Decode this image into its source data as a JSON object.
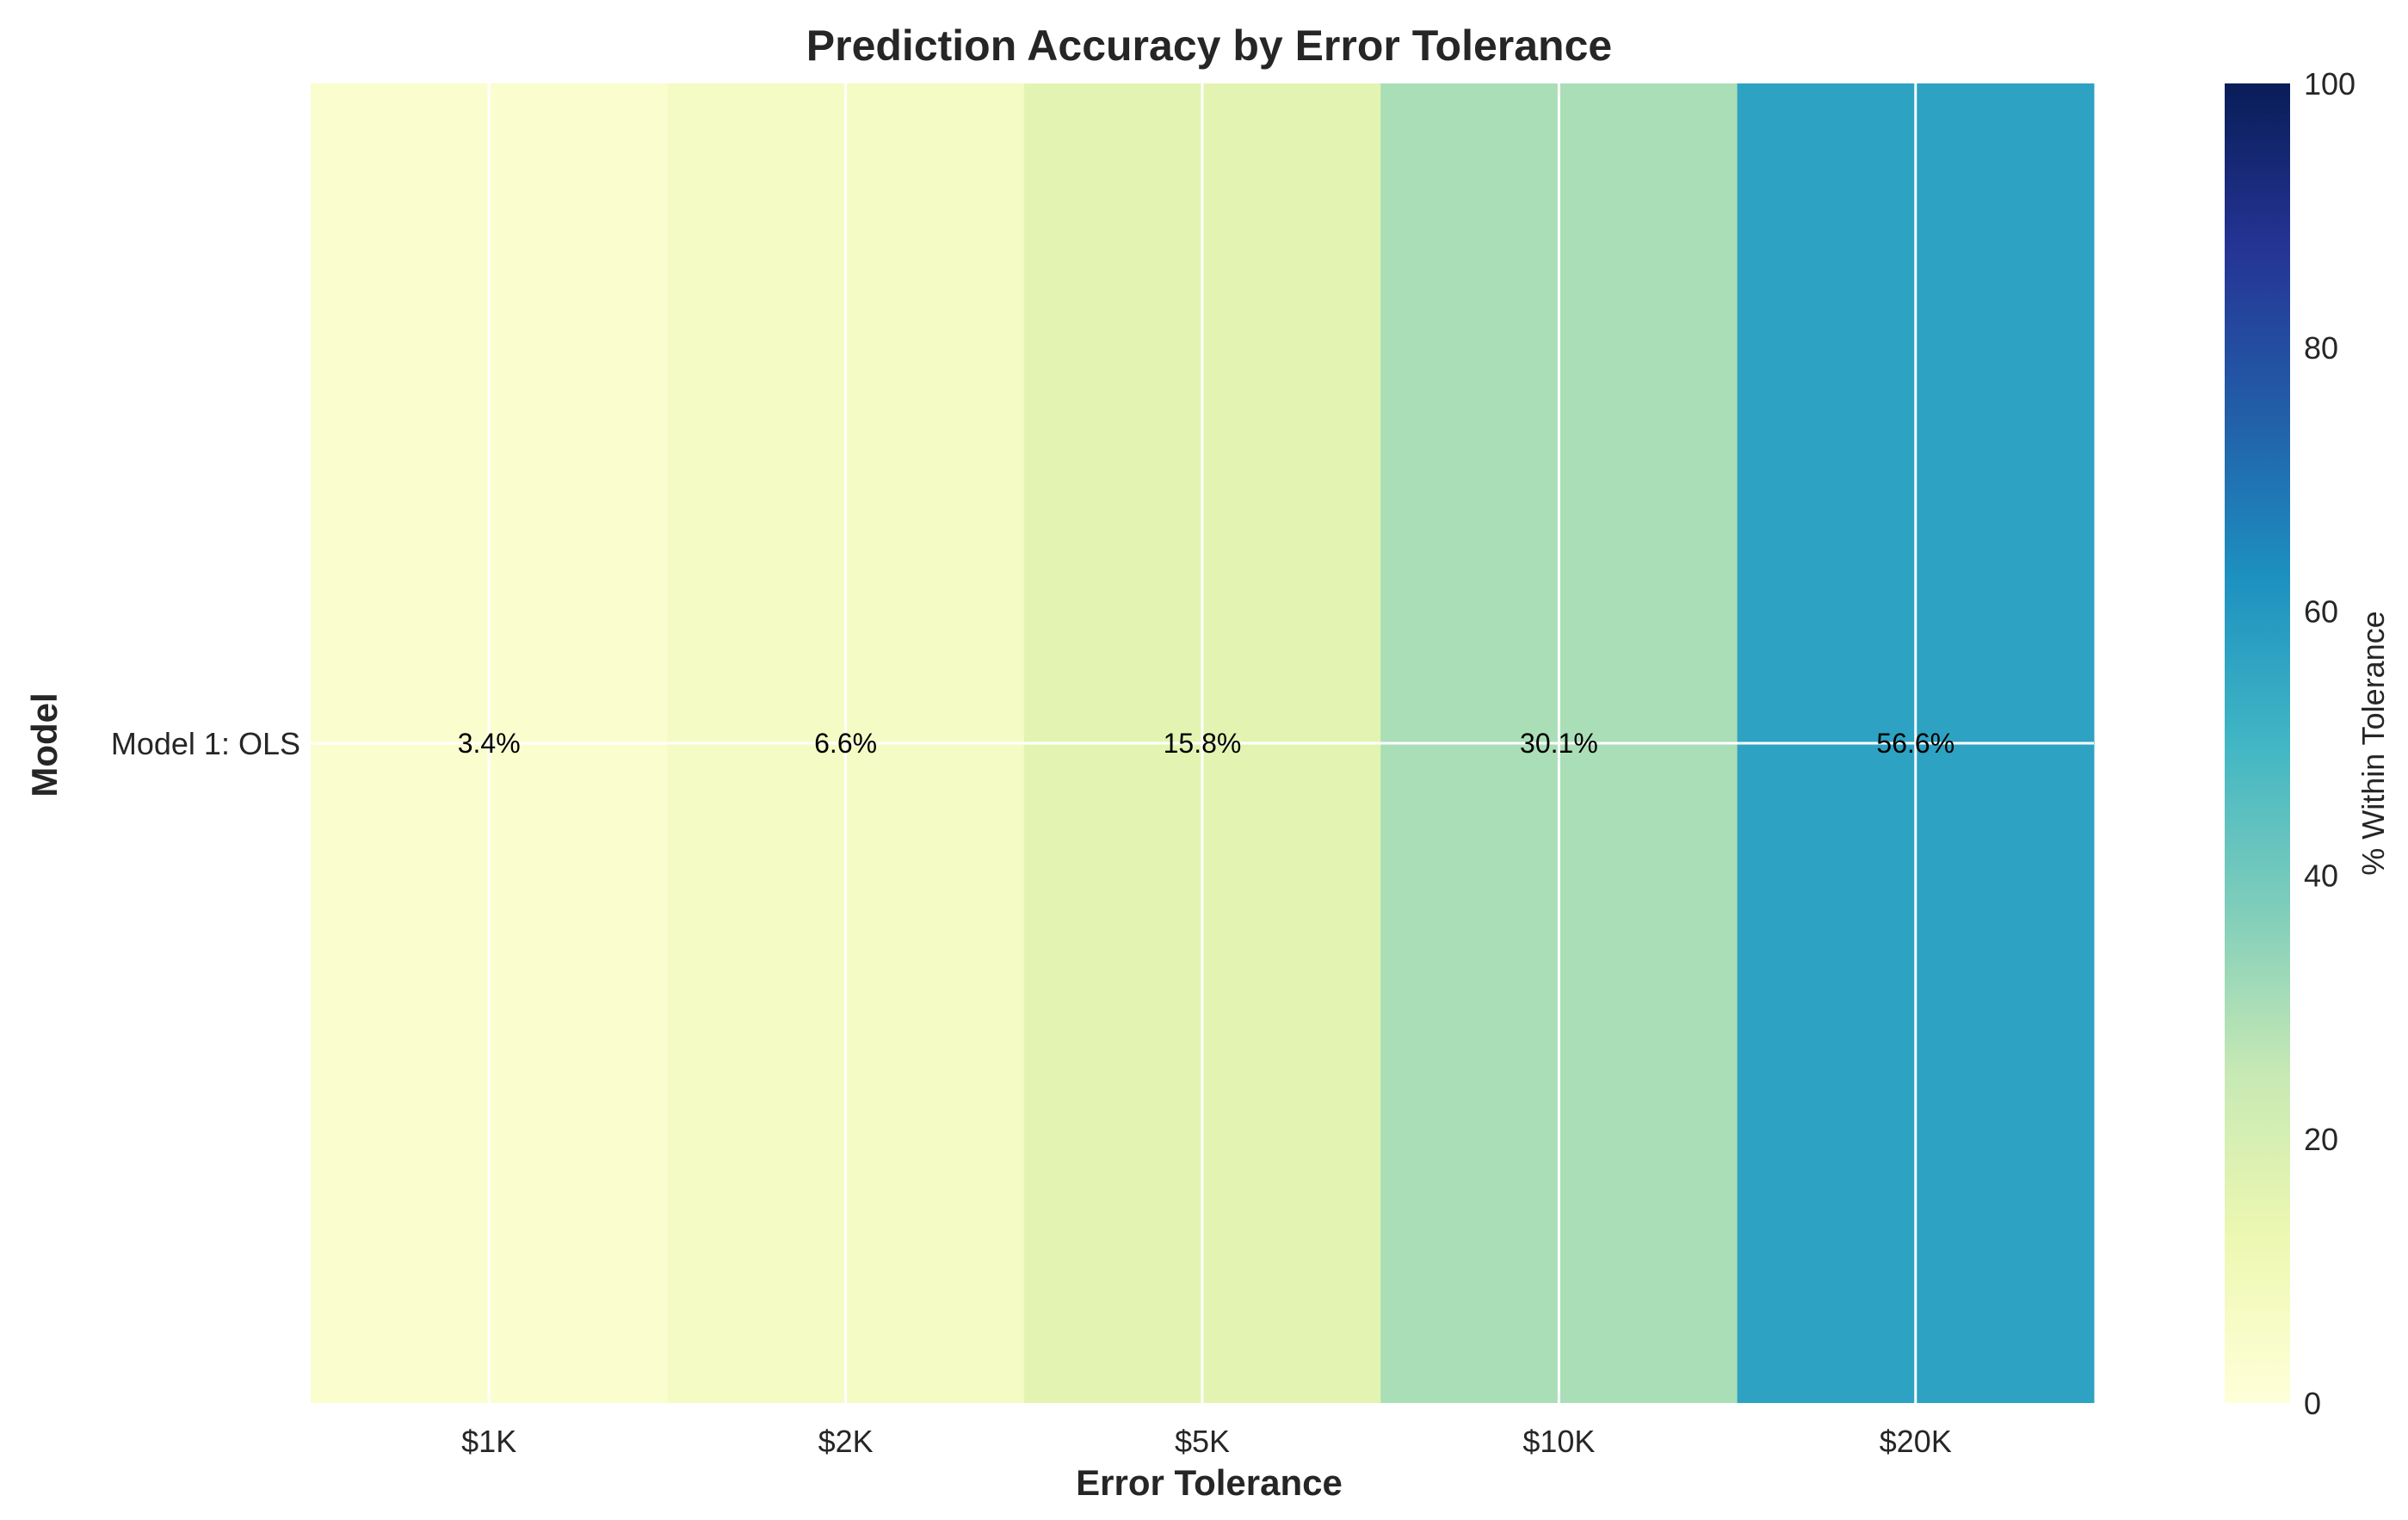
{
  "chart_data": {
    "type": "heatmap",
    "title": "Prediction Accuracy by Error Tolerance",
    "xlabel": "Error Tolerance",
    "ylabel": "Model",
    "x_categories": [
      "$1K",
      "$2K",
      "$5K",
      "$10K",
      "$20K"
    ],
    "y_categories": [
      "Model 1: OLS"
    ],
    "values": [
      [
        3.4,
        6.6,
        15.8,
        30.1,
        56.6
      ]
    ],
    "cell_labels": [
      [
        "3.4%",
        "6.6%",
        "15.8%",
        "30.1%",
        "56.6%"
      ]
    ],
    "colorbar": {
      "label": "% Within Tolerance",
      "range": [
        0,
        100
      ],
      "ticks": [
        "0",
        "20",
        "40",
        "60",
        "80",
        "100"
      ],
      "colormap": "YlGnBu"
    },
    "grid": true
  }
}
